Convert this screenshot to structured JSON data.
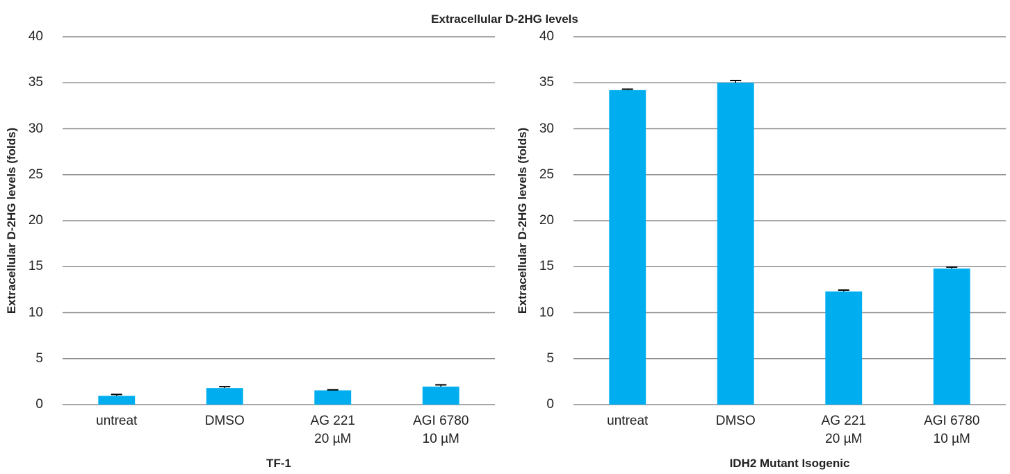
{
  "title": "Extracellular D-2HG levels",
  "chart_data": [
    {
      "type": "bar",
      "xlabel": "TF-1",
      "ylabel": "Extracellular D-2HG levels (folds)",
      "categories": [
        "untreat",
        "DMSO",
        "AG 221\n20 µM",
        "AGI 6780\n10 µM"
      ],
      "values": [
        0.95,
        1.8,
        1.55,
        1.95
      ],
      "errors": [
        0.15,
        0.15,
        0.05,
        0.2
      ],
      "color": "#00aeef",
      "ylim": [
        0,
        40
      ],
      "yticks": [
        0,
        5,
        10,
        15,
        20,
        25,
        30,
        35,
        40
      ],
      "grid": true
    },
    {
      "type": "bar",
      "xlabel": "IDH2 Mutant Isogenic",
      "ylabel": "Extracellular D-2HG levels (folds)",
      "categories": [
        "untreat",
        "DMSO",
        "AG 221\n20 µM",
        "AGI 6780\n10 µM"
      ],
      "values": [
        34.2,
        35.0,
        12.3,
        14.8
      ],
      "errors": [
        0.1,
        0.25,
        0.15,
        0.15
      ],
      "color": "#00aeef",
      "ylim": [
        0,
        40
      ],
      "yticks": [
        0,
        5,
        10,
        15,
        20,
        25,
        30,
        35,
        40
      ],
      "grid": true
    }
  ]
}
